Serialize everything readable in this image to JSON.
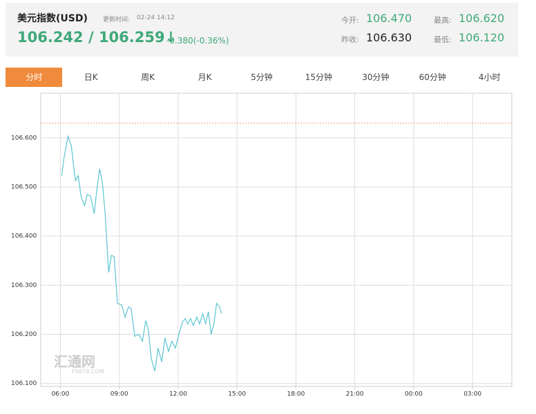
{
  "header": {
    "title": "美元指数(USD)",
    "update_label": "更新时间:",
    "update_time": "02-24 14:12",
    "price": "106.242 / 106.259↓",
    "change": "-0.380(-0.36%)",
    "open_label": "今开:",
    "open": "106.470",
    "high_label": "最高:",
    "high": "106.620",
    "prev_close_label": "昨收:",
    "prev_close": "106.630",
    "low_label": "最低:",
    "low": "106.120"
  },
  "tabs": [
    "分时",
    "日K",
    "周K",
    "月K",
    "5分钟",
    "15分钟",
    "30分钟",
    "60分钟",
    "4小时"
  ],
  "watermark": [
    "汇通网",
    "FX678.COM"
  ],
  "chart_data": {
    "type": "line",
    "x": [
      6.07,
      6.18,
      6.39,
      6.56,
      6.67,
      6.77,
      6.91,
      7.05,
      7.23,
      7.37,
      7.54,
      7.72,
      7.86,
      8.0,
      8.14,
      8.28,
      8.46,
      8.6,
      8.74,
      8.91,
      9.12,
      9.3,
      9.47,
      9.61,
      9.79,
      10.0,
      10.18,
      10.35,
      10.49,
      10.63,
      10.81,
      10.98,
      11.16,
      11.33,
      11.51,
      11.68,
      11.86,
      12.04,
      12.21,
      12.35,
      12.49,
      12.63,
      12.77,
      12.95,
      13.09,
      13.26,
      13.4,
      13.54,
      13.68,
      13.82,
      13.96,
      14.11,
      14.21
    ],
    "series": [
      {
        "color": "#5cc4d2",
        "values": [
          106.523,
          106.558,
          106.603,
          106.583,
          106.544,
          106.513,
          106.523,
          106.481,
          106.462,
          106.485,
          106.481,
          106.446,
          106.495,
          106.537,
          106.509,
          106.446,
          106.326,
          106.361,
          106.358,
          106.263,
          106.26,
          106.235,
          106.256,
          106.252,
          106.196,
          106.2,
          106.186,
          106.228,
          106.207,
          106.151,
          106.125,
          106.172,
          106.144,
          106.193,
          106.165,
          106.186,
          106.172,
          106.2,
          106.224,
          106.232,
          106.221,
          106.232,
          106.218,
          106.235,
          106.221,
          106.242,
          106.221,
          106.246,
          106.2,
          106.221,
          106.263,
          106.256,
          106.242
        ]
      }
    ],
    "reference_line": 106.63,
    "reference_color": "#f0a070",
    "xlim": [
      5,
      29
    ],
    "ylim": [
      106.094,
      106.691
    ],
    "xticks": [
      {
        "value": 6,
        "label": "06:00"
      },
      {
        "value": 9,
        "label": "09:00"
      },
      {
        "value": 12,
        "label": "12:00"
      },
      {
        "value": 15,
        "label": "15:00"
      },
      {
        "value": 18,
        "label": "18:00"
      },
      {
        "value": 21,
        "label": "21:00"
      },
      {
        "value": 24,
        "label": "00:00"
      },
      {
        "value": 27,
        "label": "03:00"
      }
    ],
    "yticks": [
      {
        "value": 106.1,
        "label": "106.100"
      },
      {
        "value": 106.2,
        "label": "106.200"
      },
      {
        "value": 106.3,
        "label": "106.300"
      },
      {
        "value": 106.4,
        "label": "106.400"
      },
      {
        "value": 106.5,
        "label": "106.500"
      },
      {
        "value": 106.6,
        "label": "106.600"
      }
    ],
    "grid": true
  }
}
